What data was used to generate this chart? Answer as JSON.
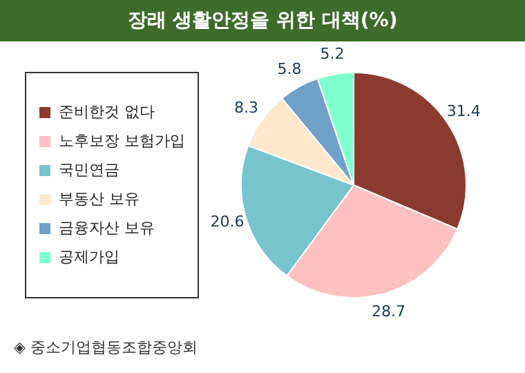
{
  "chart_data": {
    "type": "pie",
    "title": "장래 생활안정을 위한 대책(%)",
    "categories": [
      "준비한것 없다",
      "노후보장 보험가입",
      "국민연금",
      "부동산 보유",
      "금융자산 보유",
      "공제가입"
    ],
    "values": [
      31.4,
      28.7,
      20.6,
      8.3,
      5.8,
      5.2
    ],
    "colors": [
      "#8b3a2e",
      "#ffc0c0",
      "#78c4cc",
      "#ffe8cc",
      "#6fa0c8",
      "#80ffd0"
    ],
    "data_labels": true,
    "legend": "left",
    "annotations": [
      "◈ 중소기업협동조합중앙회"
    ]
  }
}
